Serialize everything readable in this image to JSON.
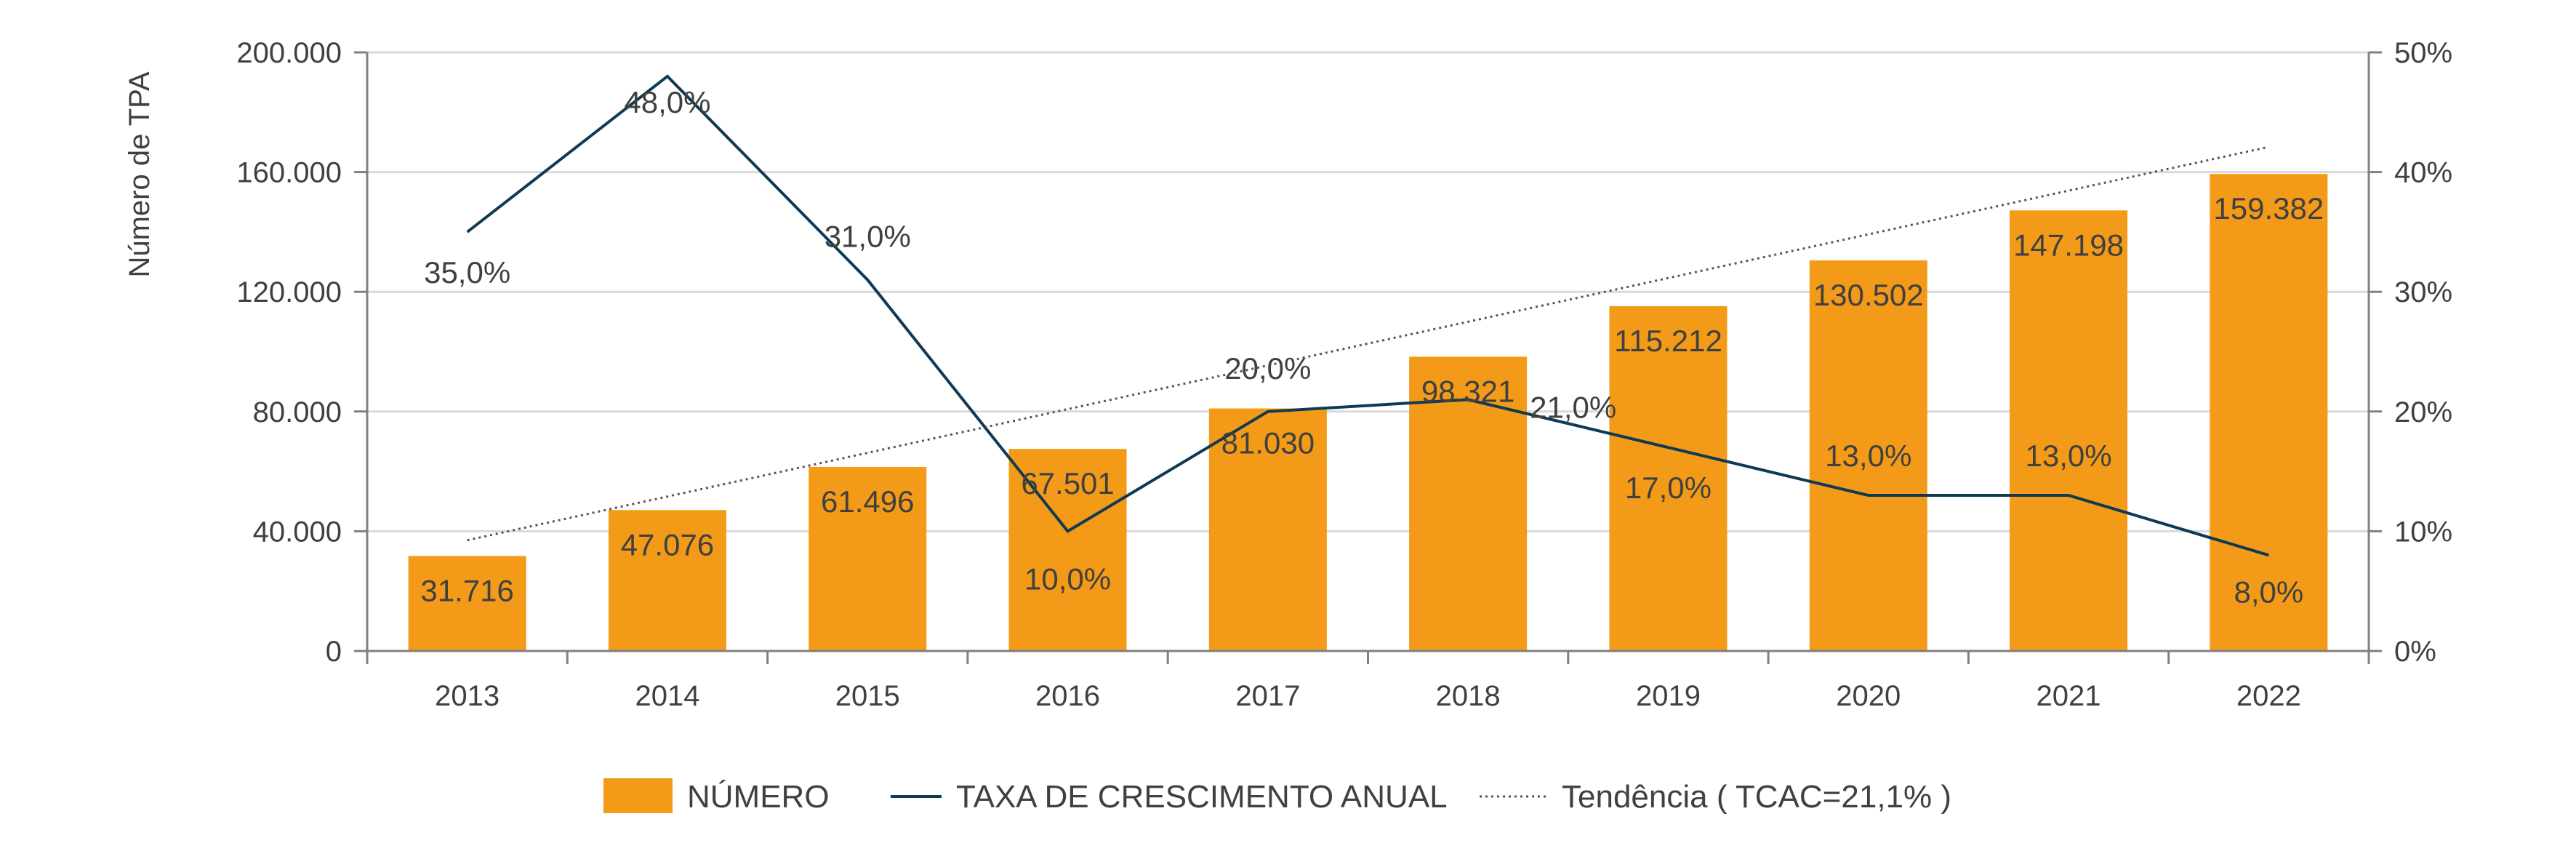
{
  "chart_data": {
    "type": "bar+line",
    "title": "",
    "categories": [
      "2013",
      "2014",
      "2015",
      "2016",
      "2017",
      "2018",
      "2019",
      "2020",
      "2021",
      "2022"
    ],
    "ylabel": "Número de TPA",
    "y_left": {
      "min": 0,
      "max": 200000,
      "ticks": [
        0,
        40000,
        80000,
        120000,
        160000,
        200000
      ],
      "tick_labels": [
        "0",
        "40.000",
        "80.000",
        "120.000",
        "160.000",
        "200.000"
      ]
    },
    "y_right": {
      "min": 0,
      "max": 50,
      "ticks": [
        0,
        10,
        20,
        30,
        40,
        50
      ],
      "tick_labels": [
        "0%",
        "10%",
        "20%",
        "30%",
        "40%",
        "50%"
      ]
    },
    "grid": true,
    "series": [
      {
        "name": "NÚMERO",
        "kind": "bar",
        "axis": "left",
        "color": "#F39A18",
        "values": [
          31716,
          47076,
          61496,
          67501,
          81030,
          98321,
          115212,
          130502,
          147198,
          159382
        ],
        "labels": [
          "31.716",
          "47.076",
          "61.496",
          "67.501",
          "81.030",
          "98.321",
          "115.212",
          "130.502",
          "147.198",
          "159.382"
        ]
      },
      {
        "name": "TAXA DE CRESCIMENTO ANUAL",
        "kind": "line",
        "axis": "right",
        "color": "#0E3A53",
        "values": [
          35,
          48,
          31,
          10,
          20,
          21,
          17,
          13,
          13,
          8
        ],
        "labels": [
          "35,0%",
          "48,0%",
          "31,0%",
          "10,0%",
          "20,0%",
          "21,0%",
          "17,0%",
          "13,0%",
          "13,0%",
          "8,0%"
        ]
      },
      {
        "name": "Tendência ( TCAC=21,1% )",
        "kind": "trend",
        "axis": "left",
        "color": "#555555",
        "values": [
          37000,
          51600,
          66200,
          80800,
          95400,
          110000,
          124600,
          139200,
          153800,
          168400
        ]
      }
    ],
    "legend": {
      "position": "bottom"
    }
  }
}
